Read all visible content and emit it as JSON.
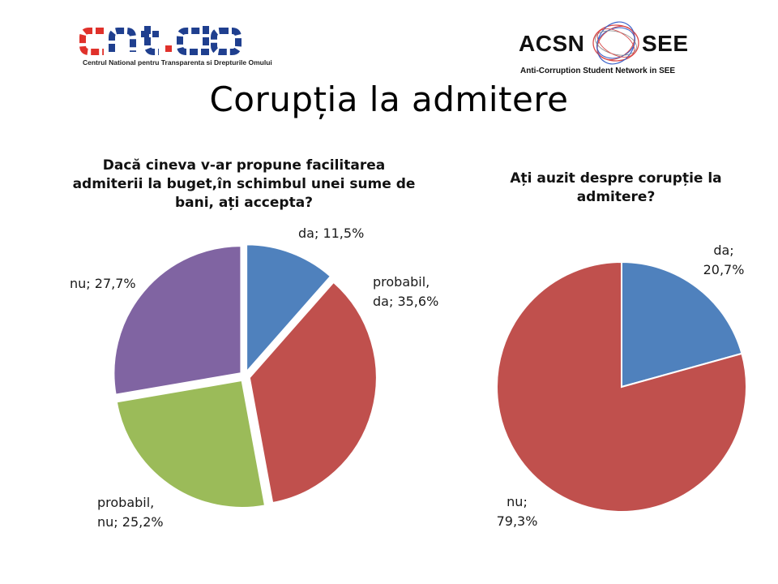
{
  "logos": {
    "left": {
      "wordmark": "cntdo",
      "subtitle": "Centrul National pentru Transparenta si Drepturile Omului"
    },
    "right": {
      "left_text": "ACSN",
      "right_text": "SEE",
      "subtitle": "Anti-Corruption Student Network in SEE"
    }
  },
  "slide_title": "Corupția la admitere",
  "chart_data": [
    {
      "type": "pie",
      "title": "Dacă cineva v-ar propune facilitarea admiterii la buget,în schimbul unei sume de bani, ați accepta?",
      "slices": [
        {
          "label": "da",
          "value": 11.5,
          "text": "da; 11,5%",
          "color": "#4F81BD",
          "exploded": true
        },
        {
          "label": "probabil, da",
          "value": 35.6,
          "text": "probabil, da; 35,6%",
          "color": "#C0504D",
          "exploded": true
        },
        {
          "label": "probabil, nu",
          "value": 25.2,
          "text": "probabil, nu; 25,2%",
          "color": "#9BBB59",
          "exploded": true
        },
        {
          "label": "nu",
          "value": 27.7,
          "text": "nu; 27,7%",
          "color": "#8064A2",
          "exploded": true
        }
      ]
    },
    {
      "type": "pie",
      "title": "Ați auzit despre corupție la admitere?",
      "slices": [
        {
          "label": "da",
          "value": 20.7,
          "text": "da; 20,7%",
          "color": "#4F81BD",
          "exploded": false
        },
        {
          "label": "nu",
          "value": 79.3,
          "text": "nu; 79,3%",
          "color": "#C0504D",
          "exploded": false
        }
      ]
    }
  ]
}
